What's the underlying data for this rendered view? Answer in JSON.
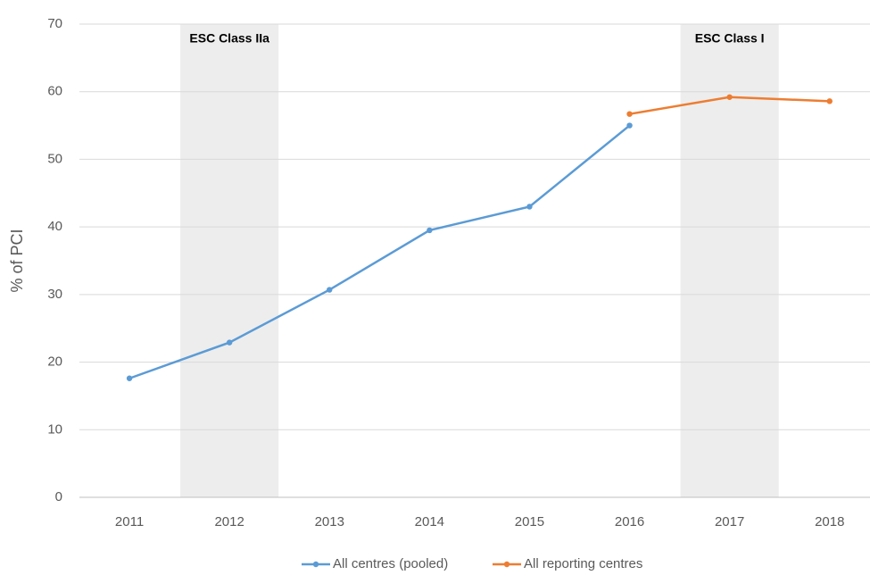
{
  "chart_data": {
    "type": "line",
    "y_label": "% of PCI",
    "categories": [
      "2011",
      "2012",
      "2013",
      "2014",
      "2015",
      "2016",
      "2017",
      "2018"
    ],
    "series": [
      {
        "name": "All centres (pooled)",
        "color": "#5b9bd5",
        "values": [
          17.6,
          22.9,
          30.7,
          39.5,
          43.0,
          55.0,
          null,
          null
        ]
      },
      {
        "name": "All reporting centres",
        "color": "#ed7d31",
        "values": [
          null,
          null,
          null,
          null,
          null,
          56.7,
          59.2,
          58.6
        ]
      }
    ],
    "annotations": [
      {
        "text": "ESC Class IIa",
        "category": "2012"
      },
      {
        "text": "ESC Class I",
        "category": "2017"
      }
    ],
    "ylim": [
      0,
      70
    ],
    "yticks": [
      0,
      10,
      20,
      30,
      40,
      50,
      60,
      70
    ],
    "grid": true,
    "legend": "bottom"
  }
}
